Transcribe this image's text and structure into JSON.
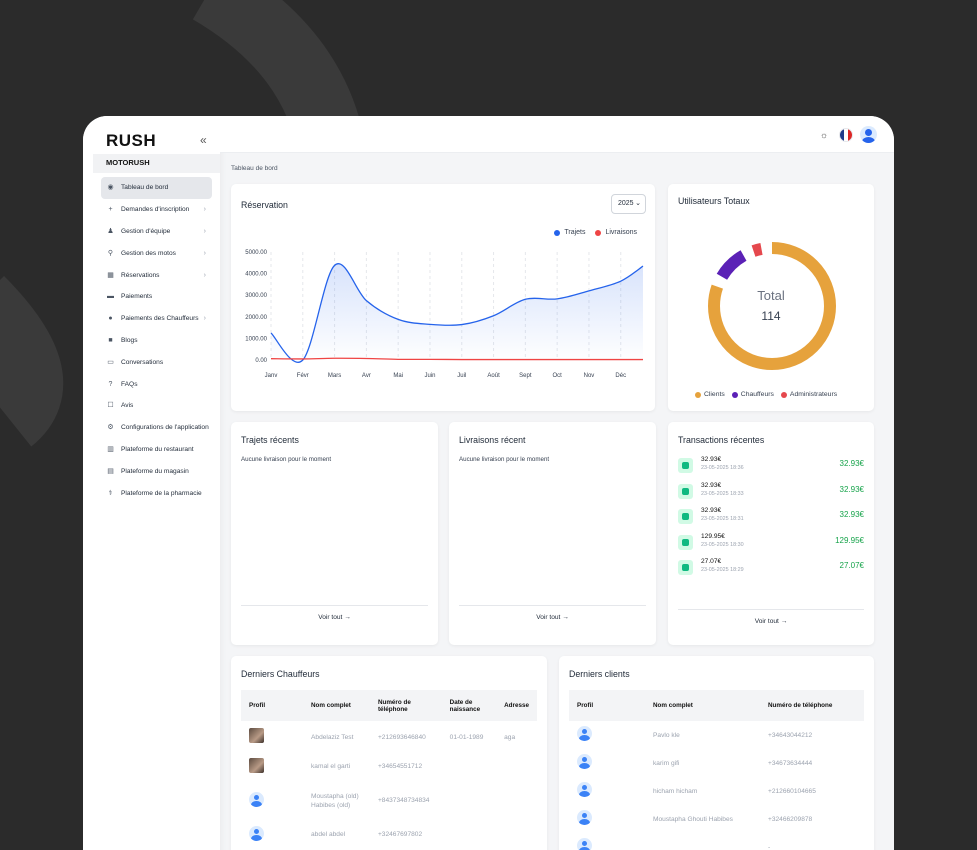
{
  "sidebar": {
    "brand": "RUSH",
    "section": "MOTORUSH",
    "items": [
      {
        "label": "Tableau de bord",
        "icon": "dashboard-icon",
        "glyph": "◉",
        "chevron": false,
        "active": true
      },
      {
        "label": "Demandes d'inscription",
        "icon": "user-add-icon",
        "glyph": "+",
        "chevron": true
      },
      {
        "label": "Gestion d'équipe",
        "icon": "team-icon",
        "glyph": "♟",
        "chevron": true
      },
      {
        "label": "Gestion des motos",
        "icon": "motorcycle-icon",
        "glyph": "⚲",
        "chevron": true
      },
      {
        "label": "Réservations",
        "icon": "calendar-icon",
        "glyph": "▦",
        "chevron": true
      },
      {
        "label": "Paiements",
        "icon": "card-icon",
        "glyph": "▬",
        "chevron": false
      },
      {
        "label": "Paiements des Chauffeurs",
        "icon": "coin-icon",
        "glyph": "●",
        "chevron": true
      },
      {
        "label": "Blogs",
        "icon": "blog-icon",
        "glyph": "■",
        "chevron": false
      },
      {
        "label": "Conversations",
        "icon": "chat-icon",
        "glyph": "▭",
        "chevron": false
      },
      {
        "label": "FAQs",
        "icon": "faq-icon",
        "glyph": "?",
        "chevron": false
      },
      {
        "label": "Avis",
        "icon": "review-icon",
        "glyph": "☐",
        "chevron": false
      },
      {
        "label": "Configurations de l'application",
        "icon": "settings-icon",
        "glyph": "⚙",
        "chevron": false
      },
      {
        "label": "Plateforme du restaurant",
        "icon": "restaurant-icon",
        "glyph": "▥",
        "chevron": false
      },
      {
        "label": "Plateforme du magasin",
        "icon": "store-icon",
        "glyph": "▤",
        "chevron": false
      },
      {
        "label": "Plateforme de la pharmacie",
        "icon": "pharmacy-icon",
        "glyph": "⚕",
        "chevron": false
      }
    ]
  },
  "breadcrumb": "Tableau de bord",
  "reservation": {
    "title": "Réservation",
    "year": "2025",
    "legend": [
      {
        "label": "Trajets",
        "color": "#2563eb"
      },
      {
        "label": "Livraisons",
        "color": "#ef4444"
      }
    ]
  },
  "chart_data": {
    "type": "line",
    "categories": [
      "Janv",
      "Févr",
      "Mars",
      "Avr",
      "Mai",
      "Juin",
      "Juil",
      "Août",
      "Sept",
      "Oct",
      "Nov",
      "Déc"
    ],
    "y_ticks": [
      "0.00",
      "1000.00",
      "2000.00",
      "3000.00",
      "4000.00",
      "5000.00"
    ],
    "ylim": [
      0,
      5000
    ],
    "grid": "vertical dashed",
    "series": [
      {
        "name": "Trajets",
        "color": "#2563eb",
        "x": [
          0,
          1,
          2,
          3,
          4,
          5,
          6,
          7,
          8,
          9,
          10,
          11,
          11.7
        ],
        "values": [
          1250,
          0,
          4380,
          2750,
          1880,
          1650,
          1640,
          2050,
          2810,
          2830,
          3200,
          3650,
          4350
        ]
      },
      {
        "name": "Livraisons",
        "color": "#ef4444",
        "x": [
          0,
          1,
          2,
          3,
          4,
          5,
          6,
          7,
          8,
          9,
          10,
          11,
          11.7
        ],
        "values": [
          60,
          50,
          80,
          70,
          30,
          30,
          20,
          20,
          20,
          20,
          20,
          20,
          20
        ]
      }
    ]
  },
  "users": {
    "title": "Utilisateurs Totaux",
    "center_label": "Total",
    "total": "114",
    "segments": [
      {
        "label": "Clients",
        "value": 95,
        "color": "#e6a23c"
      },
      {
        "label": "Chauffeurs",
        "value": 13,
        "color": "#5b21b6"
      },
      {
        "label": "Administrateurs",
        "value": 6,
        "color": "#e5484d"
      }
    ]
  },
  "recent_trips": {
    "title": "Trajets récents",
    "empty": "Aucune livraison pour le moment",
    "link": "Voir tout →"
  },
  "recent_deliveries": {
    "title": "Livraisons récent",
    "empty": "Aucune livraison pour le moment",
    "link": "Voir tout →"
  },
  "transactions": {
    "title": "Transactions récentes",
    "link": "Voir tout →",
    "items": [
      {
        "amount": "32.93€",
        "date": "23-05-2025 18:36",
        "right": "32.93€"
      },
      {
        "amount": "32.93€",
        "date": "23-05-2025 18:33",
        "right": "32.93€"
      },
      {
        "amount": "32.93€",
        "date": "23-05-2025 18:31",
        "right": "32.93€"
      },
      {
        "amount": "129.95€",
        "date": "23-05-2025 18:30",
        "right": "129.95€"
      },
      {
        "amount": "27.07€",
        "date": "23-05-2025 18:29",
        "right": "27.07€"
      }
    ]
  },
  "drivers": {
    "title": "Derniers Chauffeurs",
    "columns": [
      "Profil",
      "Nom complet",
      "Numéro de téléphone",
      "Date de naissance",
      "Adresse"
    ],
    "rows": [
      {
        "avatar": "photo",
        "name": "Abdelaziz Test",
        "phone": "+212693646840",
        "dob": "01-01-1989",
        "address": "aga"
      },
      {
        "avatar": "photo",
        "name": "kamal el garti",
        "phone": "+34654551712",
        "dob": "",
        "address": ""
      },
      {
        "avatar": "placeholder",
        "name": "Moustapha (old) Habibes (old)",
        "phone": "+8437348734834",
        "dob": "",
        "address": ""
      },
      {
        "avatar": "placeholder",
        "name": "abdel abdel",
        "phone": "+32467697802",
        "dob": "",
        "address": ""
      }
    ]
  },
  "clients": {
    "title": "Derniers clients",
    "columns": [
      "Profil",
      "Nom complet",
      "Numéro de téléphone"
    ],
    "rows": [
      {
        "name": "Pavlo kle",
        "phone": "+34643044212"
      },
      {
        "name": "karim gifi",
        "phone": "+34673634444"
      },
      {
        "name": "hicham hicham",
        "phone": "+212660104665"
      },
      {
        "name": "Moustapha Ghouti Habibes",
        "phone": "+32466209878"
      },
      {
        "name": "",
        "phone": "-"
      }
    ]
  },
  "topbar": {
    "theme_icon": "sun-icon",
    "language_icon": "france-flag-icon",
    "avatar_icon": "user-avatar-icon"
  }
}
